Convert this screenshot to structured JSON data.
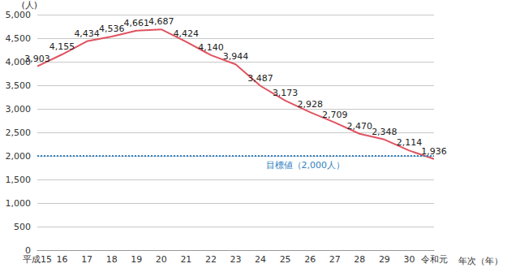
{
  "chart_data": {
    "type": "line",
    "x_label": "年次（年）",
    "y_label": "(人)",
    "categories": [
      "平成15",
      "16",
      "17",
      "18",
      "19",
      "20",
      "21",
      "22",
      "23",
      "24",
      "25",
      "26",
      "27",
      "28",
      "29",
      "30",
      "令和元"
    ],
    "values": [
      3903,
      4155,
      4434,
      4536,
      4661,
      4687,
      4424,
      4140,
      3944,
      3487,
      3173,
      2928,
      2709,
      2470,
      2348,
      2114,
      1936
    ],
    "value_labels": [
      "3,903",
      "4,155",
      "4,434",
      "4,536",
      "4,661",
      "4,687",
      "4,424",
      "4,140",
      "3,944",
      "3,487",
      "3,173",
      "2,928",
      "2,709",
      "2,470",
      "2,348",
      "2,114",
      "1,936"
    ],
    "color": "#e0525f",
    "data_labels": true,
    "ylim": [
      0,
      5000
    ],
    "yticks": [
      0,
      500,
      {
        "value": 1000,
        "label": "1,000"
      },
      {
        "value": 1500,
        "label": "1,500"
      },
      {
        "value": 2000,
        "label": "2,000"
      },
      {
        "value": 2500,
        "label": "2,500"
      },
      {
        "value": 3000,
        "label": "3,000"
      },
      {
        "value": 3500,
        "label": "3,500"
      },
      {
        "value": 4000,
        "label": "4,000"
      },
      {
        "value": 4500,
        "label": "4,500"
      },
      {
        "value": 5000,
        "label": "5,000"
      }
    ],
    "grid": true,
    "annotations": [
      {
        "type": "hline",
        "y": 2000,
        "text": "目標値（2,000人）",
        "color": "#2f7fc1",
        "line_style": "dotted"
      }
    ]
  }
}
